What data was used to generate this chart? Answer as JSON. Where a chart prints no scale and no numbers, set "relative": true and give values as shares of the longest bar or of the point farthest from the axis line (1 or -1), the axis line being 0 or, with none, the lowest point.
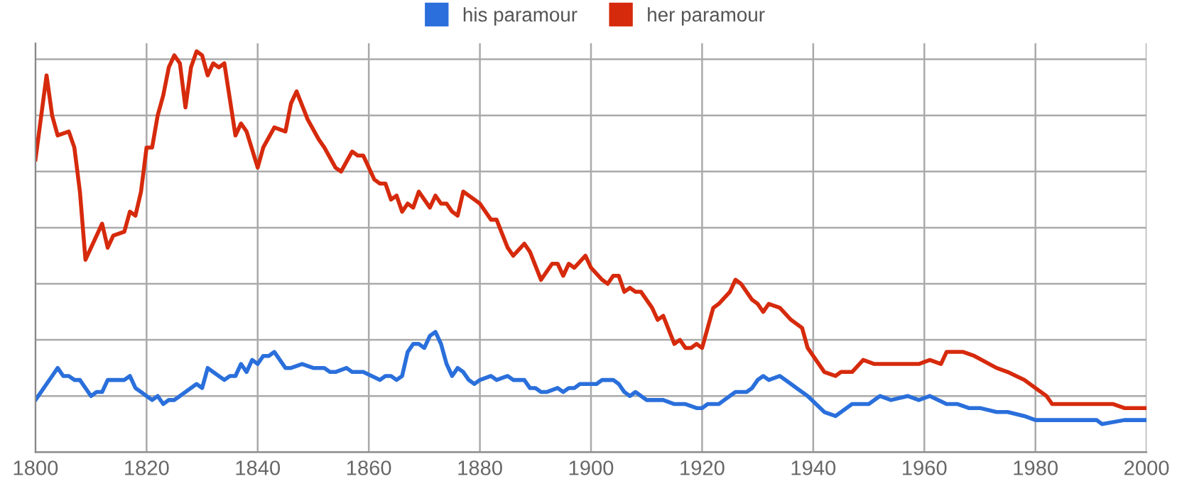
{
  "chart_data": {
    "type": "line",
    "relative": true,
    "legend": "top",
    "grid": true,
    "marker": "none",
    "line_style": "solid",
    "xlim": [
      1800,
      2000
    ],
    "xticks": [
      1800,
      1820,
      1840,
      1860,
      1880,
      1900,
      1920,
      1940,
      1960,
      1980,
      2000
    ],
    "series": [
      {
        "name": "his paramour",
        "color": "#2a6fdb",
        "x": [
          1800,
          1801,
          1802,
          1803,
          1804,
          1805,
          1806,
          1807,
          1808,
          1810,
          1811,
          1812,
          1813,
          1815,
          1816,
          1817,
          1818,
          1819,
          1820,
          1821,
          1822,
          1823,
          1824,
          1825,
          1827,
          1829,
          1830,
          1831,
          1833,
          1834,
          1835,
          1836,
          1837,
          1838,
          1839,
          1840,
          1841,
          1842,
          1843,
          1845,
          1846,
          1848,
          1850,
          1851,
          1852,
          1853,
          1854,
          1856,
          1857,
          1859,
          1862,
          1863,
          1864,
          1865,
          1866,
          1867,
          1868,
          1869,
          1870,
          1871,
          1872,
          1873,
          1874,
          1875,
          1876,
          1877,
          1878,
          1879,
          1880,
          1882,
          1883,
          1885,
          1886,
          1888,
          1889,
          1890,
          1891,
          1892,
          1894,
          1895,
          1896,
          1897,
          1898,
          1900,
          1901,
          1902,
          1904,
          1905,
          1906,
          1907,
          1908,
          1910,
          1912,
          1913,
          1915,
          1917,
          1919,
          1920,
          1921,
          1923,
          1924,
          1926,
          1927,
          1928,
          1929,
          1930,
          1931,
          1932,
          1934,
          1936,
          1937,
          1939,
          1942,
          1944,
          1947,
          1950,
          1952,
          1954,
          1957,
          1959,
          1961,
          1964,
          1966,
          1968,
          1970,
          1973,
          1975,
          1978,
          1980,
          1983,
          1986,
          1988,
          1991,
          1992,
          1996,
          2000
        ],
        "values": [
          0.13,
          0.15,
          0.17,
          0.19,
          0.21,
          0.19,
          0.19,
          0.18,
          0.18,
          0.14,
          0.15,
          0.15,
          0.18,
          0.18,
          0.18,
          0.19,
          0.16,
          0.15,
          0.14,
          0.13,
          0.14,
          0.12,
          0.13,
          0.13,
          0.15,
          0.17,
          0.16,
          0.21,
          0.19,
          0.18,
          0.19,
          0.19,
          0.22,
          0.2,
          0.23,
          0.22,
          0.24,
          0.24,
          0.25,
          0.21,
          0.21,
          0.22,
          0.21,
          0.21,
          0.21,
          0.2,
          0.2,
          0.21,
          0.2,
          0.2,
          0.18,
          0.19,
          0.19,
          0.18,
          0.19,
          0.25,
          0.27,
          0.27,
          0.26,
          0.29,
          0.3,
          0.27,
          0.22,
          0.19,
          0.21,
          0.2,
          0.18,
          0.17,
          0.18,
          0.19,
          0.18,
          0.19,
          0.18,
          0.18,
          0.16,
          0.16,
          0.15,
          0.15,
          0.16,
          0.15,
          0.16,
          0.16,
          0.17,
          0.17,
          0.17,
          0.18,
          0.18,
          0.17,
          0.15,
          0.14,
          0.15,
          0.13,
          0.13,
          0.13,
          0.12,
          0.12,
          0.11,
          0.11,
          0.12,
          0.12,
          0.13,
          0.15,
          0.15,
          0.15,
          0.16,
          0.18,
          0.19,
          0.18,
          0.19,
          0.17,
          0.16,
          0.14,
          0.1,
          0.09,
          0.12,
          0.12,
          0.14,
          0.13,
          0.14,
          0.13,
          0.14,
          0.12,
          0.12,
          0.11,
          0.11,
          0.1,
          0.1,
          0.09,
          0.08,
          0.08,
          0.08,
          0.08,
          0.08,
          0.07,
          0.08,
          0.08
        ]
      },
      {
        "name": "her paramour",
        "color": "#d62a0c",
        "x": [
          1800,
          1802,
          1803,
          1804,
          1806,
          1807,
          1808,
          1809,
          1812,
          1813,
          1814,
          1816,
          1817,
          1818,
          1819,
          1820,
          1821,
          1822,
          1823,
          1824,
          1825,
          1826,
          1827,
          1828,
          1829,
          1830,
          1831,
          1832,
          1833,
          1834,
          1836,
          1837,
          1838,
          1840,
          1841,
          1843,
          1845,
          1846,
          1847,
          1849,
          1851,
          1852,
          1854,
          1855,
          1857,
          1858,
          1859,
          1861,
          1862,
          1863,
          1864,
          1865,
          1866,
          1867,
          1868,
          1869,
          1870,
          1871,
          1872,
          1873,
          1874,
          1875,
          1876,
          1877,
          1879,
          1880,
          1881,
          1882,
          1883,
          1885,
          1886,
          1888,
          1889,
          1891,
          1893,
          1894,
          1895,
          1896,
          1897,
          1899,
          1900,
          1902,
          1903,
          1904,
          1905,
          1906,
          1907,
          1908,
          1909,
          1911,
          1912,
          1913,
          1915,
          1916,
          1917,
          1918,
          1919,
          1920,
          1921,
          1922,
          1923,
          1925,
          1926,
          1927,
          1929,
          1930,
          1931,
          1932,
          1934,
          1936,
          1938,
          1939,
          1942,
          1944,
          1945,
          1947,
          1949,
          1951,
          1954,
          1956,
          1959,
          1961,
          1963,
          1964,
          1967,
          1969,
          1973,
          1975,
          1978,
          1979,
          1982,
          1983,
          1985,
          1990,
          1994,
          1996,
          2000
        ],
        "values": [
          0.73,
          0.94,
          0.84,
          0.79,
          0.8,
          0.76,
          0.65,
          0.48,
          0.57,
          0.51,
          0.54,
          0.55,
          0.6,
          0.59,
          0.65,
          0.76,
          0.76,
          0.84,
          0.89,
          0.96,
          0.99,
          0.97,
          0.86,
          0.96,
          1,
          0.99,
          0.94,
          0.97,
          0.96,
          0.97,
          0.79,
          0.82,
          0.8,
          0.71,
          0.76,
          0.81,
          0.8,
          0.87,
          0.9,
          0.83,
          0.78,
          0.76,
          0.71,
          0.7,
          0.75,
          0.74,
          0.74,
          0.68,
          0.67,
          0.67,
          0.63,
          0.64,
          0.6,
          0.62,
          0.61,
          0.65,
          0.63,
          0.61,
          0.64,
          0.62,
          0.62,
          0.6,
          0.59,
          0.65,
          0.63,
          0.62,
          0.6,
          0.58,
          0.58,
          0.51,
          0.49,
          0.52,
          0.5,
          0.43,
          0.47,
          0.47,
          0.44,
          0.47,
          0.46,
          0.49,
          0.46,
          0.43,
          0.42,
          0.44,
          0.44,
          0.4,
          0.41,
          0.4,
          0.4,
          0.36,
          0.33,
          0.34,
          0.27,
          0.28,
          0.26,
          0.26,
          0.27,
          0.26,
          0.31,
          0.36,
          0.37,
          0.4,
          0.43,
          0.42,
          0.38,
          0.37,
          0.35,
          0.37,
          0.36,
          0.33,
          0.31,
          0.26,
          0.2,
          0.19,
          0.2,
          0.2,
          0.23,
          0.22,
          0.22,
          0.22,
          0.22,
          0.23,
          0.22,
          0.25,
          0.25,
          0.24,
          0.21,
          0.2,
          0.18,
          0.17,
          0.14,
          0.12,
          0.12,
          0.12,
          0.12,
          0.11,
          0.11
        ]
      }
    ]
  }
}
